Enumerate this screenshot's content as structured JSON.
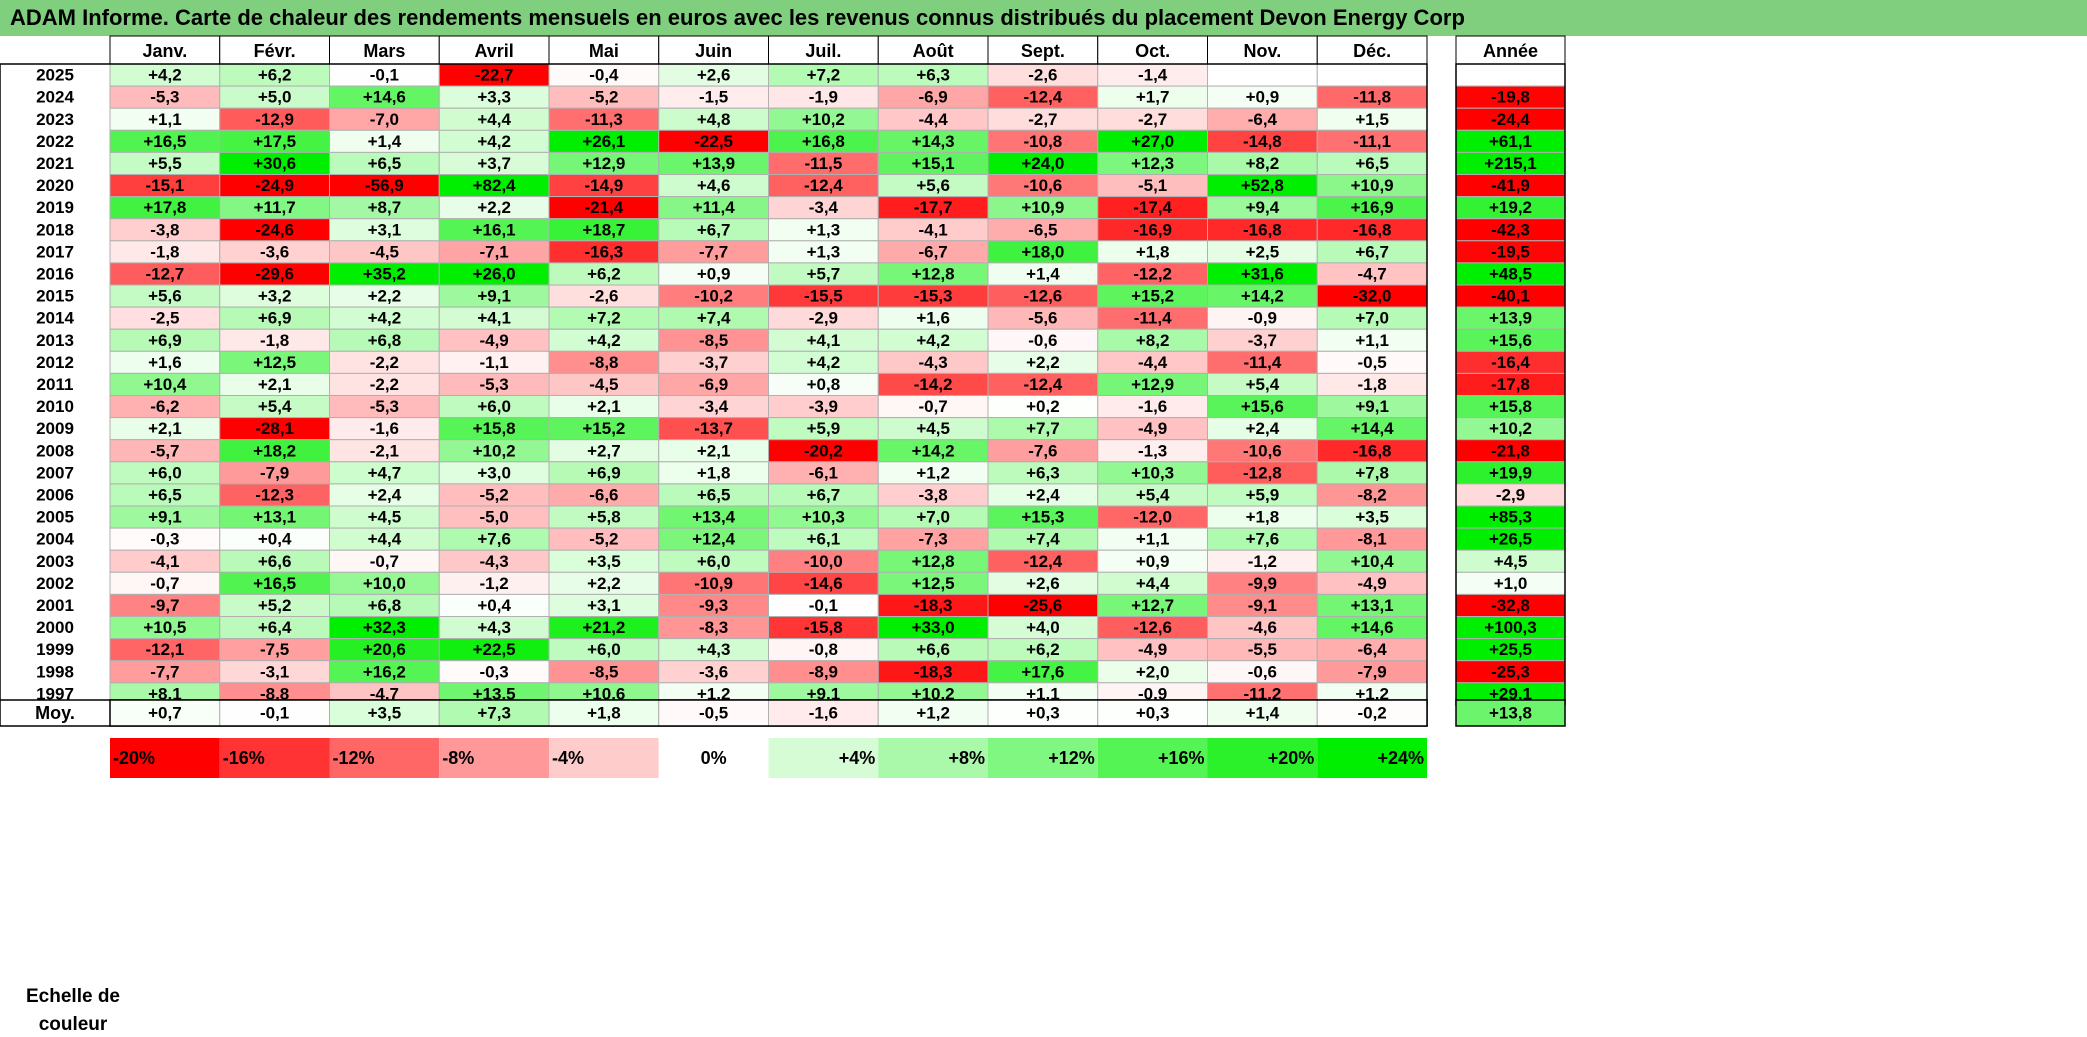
{
  "title": "ADAM Informe. Carte de chaleur des rendements mensuels en euros avec les revenus connus distribués du placement Devon Energy Corp",
  "scale_label_line1": "Echelle de",
  "scale_label_line2": "couleur",
  "avg_label": "Moy.",
  "colors": {
    "neg_max": "#ff0000",
    "zero": "#ffffff",
    "pos_max": "#00ee00",
    "title_bg": "#7fcf7f"
  },
  "chart_data": {
    "type": "heatmap",
    "title": "ADAM Informe. Carte de chaleur des rendements mensuels en euros avec les revenus connus distribués du placement Devon Energy Corp",
    "month_headers": [
      "Janv.",
      "Févr.",
      "Mars",
      "Avril",
      "Mai",
      "Juin",
      "Juil.",
      "Août",
      "Sept.",
      "Oct.",
      "Nov.",
      "Déc."
    ],
    "year_header": "Année",
    "rows": [
      {
        "year": "2025",
        "values": [
          "+4,2",
          "+6,2",
          "-0,1",
          "-22,7",
          "-0,4",
          "+2,6",
          "+7,2",
          "+6,3",
          "-2,6",
          "-1,4",
          "",
          ""
        ],
        "annual": ""
      },
      {
        "year": "2024",
        "values": [
          "-5,3",
          "+5,0",
          "+14,6",
          "+3,3",
          "-5,2",
          "-1,5",
          "-1,9",
          "-6,9",
          "-12,4",
          "+1,7",
          "+0,9",
          "-11,8"
        ],
        "annual": "-19,8"
      },
      {
        "year": "2023",
        "values": [
          "+1,1",
          "-12,9",
          "-7,0",
          "+4,4",
          "-11,3",
          "+4,8",
          "+10,2",
          "-4,4",
          "-2,7",
          "-2,7",
          "-6,4",
          "+1,5"
        ],
        "annual": "-24,4"
      },
      {
        "year": "2022",
        "values": [
          "+16,5",
          "+17,5",
          "+1,4",
          "+4,2",
          "+26,1",
          "-22,5",
          "+16,8",
          "+14,3",
          "-10,8",
          "+27,0",
          "-14,8",
          "-11,1"
        ],
        "annual": "+61,1"
      },
      {
        "year": "2021",
        "values": [
          "+5,5",
          "+30,6",
          "+6,5",
          "+3,7",
          "+12,9",
          "+13,9",
          "-11,5",
          "+15,1",
          "+24,0",
          "+12,3",
          "+8,2",
          "+6,5"
        ],
        "annual": "+215,1"
      },
      {
        "year": "2020",
        "values": [
          "-15,1",
          "-24,9",
          "-56,9",
          "+82,4",
          "-14,9",
          "+4,6",
          "-12,4",
          "+5,6",
          "-10,6",
          "-5,1",
          "+52,8",
          "+10,9"
        ],
        "annual": "-41,9"
      },
      {
        "year": "2019",
        "values": [
          "+17,8",
          "+11,7",
          "+8,7",
          "+2,2",
          "-21,4",
          "+11,4",
          "-3,4",
          "-17,7",
          "+10,9",
          "-17,4",
          "+9,4",
          "+16,9"
        ],
        "annual": "+19,2"
      },
      {
        "year": "2018",
        "values": [
          "-3,8",
          "-24,6",
          "+3,1",
          "+16,1",
          "+18,7",
          "+6,7",
          "+1,3",
          "-4,1",
          "-6,5",
          "-16,9",
          "-16,8",
          "-16,8"
        ],
        "annual": "-42,3"
      },
      {
        "year": "2017",
        "values": [
          "-1,8",
          "-3,6",
          "-4,5",
          "-7,1",
          "-16,3",
          "-7,7",
          "+1,3",
          "-6,7",
          "+18,0",
          "+1,8",
          "+2,5",
          "+6,7"
        ],
        "annual": "-19,5"
      },
      {
        "year": "2016",
        "values": [
          "-12,7",
          "-29,6",
          "+35,2",
          "+26,0",
          "+6,2",
          "+0,9",
          "+5,7",
          "+12,8",
          "+1,4",
          "-12,2",
          "+31,6",
          "-4,7"
        ],
        "annual": "+48,5"
      },
      {
        "year": "2015",
        "values": [
          "+5,6",
          "+3,2",
          "+2,2",
          "+9,1",
          "-2,6",
          "-10,2",
          "-15,5",
          "-15,3",
          "-12,6",
          "+15,2",
          "+14,2",
          "-32,0"
        ],
        "annual": "-40,1"
      },
      {
        "year": "2014",
        "values": [
          "-2,5",
          "+6,9",
          "+4,2",
          "+4,1",
          "+7,2",
          "+7,4",
          "-2,9",
          "+1,6",
          "-5,6",
          "-11,4",
          "-0,9",
          "+7,0"
        ],
        "annual": "+13,9"
      },
      {
        "year": "2013",
        "values": [
          "+6,9",
          "-1,8",
          "+6,8",
          "-4,9",
          "+4,2",
          "-8,5",
          "+4,1",
          "+4,2",
          "-0,6",
          "+8,2",
          "-3,7",
          "+1,1"
        ],
        "annual": "+15,6"
      },
      {
        "year": "2012",
        "values": [
          "+1,6",
          "+12,5",
          "-2,2",
          "-1,1",
          "-8,8",
          "-3,7",
          "+4,2",
          "-4,3",
          "+2,2",
          "-4,4",
          "-11,4",
          "-0,5"
        ],
        "annual": "-16,4"
      },
      {
        "year": "2011",
        "values": [
          "+10,4",
          "+2,1",
          "-2,2",
          "-5,3",
          "-4,5",
          "-6,9",
          "+0,8",
          "-14,2",
          "-12,4",
          "+12,9",
          "+5,4",
          "-1,8"
        ],
        "annual": "-17,8"
      },
      {
        "year": "2010",
        "values": [
          "-6,2",
          "+5,4",
          "-5,3",
          "+6,0",
          "+2,1",
          "-3,4",
          "-3,9",
          "-0,7",
          "+0,2",
          "-1,6",
          "+15,6",
          "+9,1"
        ],
        "annual": "+15,8"
      },
      {
        "year": "2009",
        "values": [
          "+2,1",
          "-28,1",
          "-1,6",
          "+15,8",
          "+15,2",
          "-13,7",
          "+5,9",
          "+4,5",
          "+7,7",
          "-4,9",
          "+2,4",
          "+14,4"
        ],
        "annual": "+10,2"
      },
      {
        "year": "2008",
        "values": [
          "-5,7",
          "+18,2",
          "-2,1",
          "+10,2",
          "+2,7",
          "+2,1",
          "-20,2",
          "+14,2",
          "-7,6",
          "-1,3",
          "-10,6",
          "-16,8"
        ],
        "annual": "-21,8"
      },
      {
        "year": "2007",
        "values": [
          "+6,0",
          "-7,9",
          "+4,7",
          "+3,0",
          "+6,9",
          "+1,8",
          "-6,1",
          "+1,2",
          "+6,3",
          "+10,3",
          "-12,8",
          "+7,8"
        ],
        "annual": "+19,9"
      },
      {
        "year": "2006",
        "values": [
          "+6,5",
          "-12,3",
          "+2,4",
          "-5,2",
          "-6,6",
          "+6,5",
          "+6,7",
          "-3,8",
          "+2,4",
          "+5,4",
          "+5,9",
          "-8,2"
        ],
        "annual": "-2,9"
      },
      {
        "year": "2005",
        "values": [
          "+9,1",
          "+13,1",
          "+4,5",
          "-5,0",
          "+5,8",
          "+13,4",
          "+10,3",
          "+7,0",
          "+15,3",
          "-12,0",
          "+1,8",
          "+3,5"
        ],
        "annual": "+85,3"
      },
      {
        "year": "2004",
        "values": [
          "-0,3",
          "+0,4",
          "+4,4",
          "+7,6",
          "-5,2",
          "+12,4",
          "+6,1",
          "-7,3",
          "+7,4",
          "+1,1",
          "+7,6",
          "-8,1"
        ],
        "annual": "+26,5"
      },
      {
        "year": "2003",
        "values": [
          "-4,1",
          "+6,6",
          "-0,7",
          "-4,3",
          "+3,5",
          "+6,0",
          "-10,0",
          "+12,8",
          "-12,4",
          "+0,9",
          "-1,2",
          "+10,4"
        ],
        "annual": "+4,5"
      },
      {
        "year": "2002",
        "values": [
          "-0,7",
          "+16,5",
          "+10,0",
          "-1,2",
          "+2,2",
          "-10,9",
          "-14,6",
          "+12,5",
          "+2,6",
          "+4,4",
          "-9,9",
          "-4,9"
        ],
        "annual": "+1,0"
      },
      {
        "year": "2001",
        "values": [
          "-9,7",
          "+5,2",
          "+6,8",
          "+0,4",
          "+3,1",
          "-9,3",
          "-0,1",
          "-18,3",
          "-25,6",
          "+12,7",
          "-9,1",
          "+13,1"
        ],
        "annual": "-32,8"
      },
      {
        "year": "2000",
        "values": [
          "+10,5",
          "+6,4",
          "+32,3",
          "+4,3",
          "+21,2",
          "-8,3",
          "-15,8",
          "+33,0",
          "+4,0",
          "-12,6",
          "-4,6",
          "+14,6"
        ],
        "annual": "+100,3"
      },
      {
        "year": "1999",
        "values": [
          "-12,1",
          "-7,5",
          "+20,6",
          "+22,5",
          "+6,0",
          "+4,3",
          "-0,8",
          "+6,6",
          "+6,2",
          "-4,9",
          "-5,5",
          "-6,4"
        ],
        "annual": "+25,5"
      },
      {
        "year": "1998",
        "values": [
          "-7,7",
          "-3,1",
          "+16,2",
          "-0,3",
          "-8,5",
          "-3,6",
          "-8,9",
          "-18,3",
          "+17,6",
          "+2,0",
          "-0,6",
          "-7,9"
        ],
        "annual": "-25,3"
      },
      {
        "year": "1997",
        "values": [
          "+8,1",
          "-8,8",
          "-4,7",
          "+13,5",
          "+10,6",
          "+1,2",
          "+9,1",
          "+10,2",
          "+1,1",
          "-0,9",
          "-11,2",
          "+1,2"
        ],
        "annual": "+29,1"
      }
    ],
    "average": {
      "values": [
        "+0,7",
        "-0,1",
        "+3,5",
        "+7,3",
        "+1,8",
        "-0,5",
        "-1,6",
        "+1,2",
        "+0,3",
        "+0,3",
        "+1,4",
        "-0,2"
      ],
      "annual": "+13,8"
    },
    "scale": [
      "-20%",
      "-16%",
      "-12%",
      "-8%",
      "-4%",
      "0%",
      "+4%",
      "+8%",
      "+12%",
      "+16%",
      "+20%",
      "+24%"
    ]
  }
}
